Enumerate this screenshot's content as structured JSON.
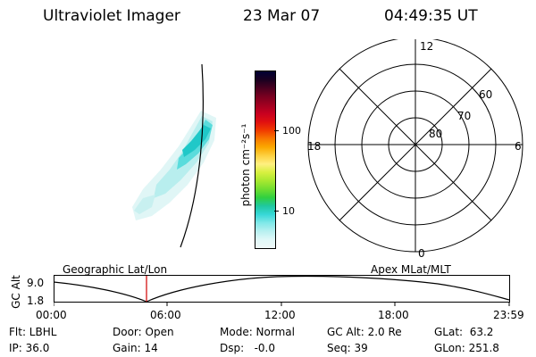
{
  "header": {
    "title": "Ultraviolet Imager",
    "date": "23 Mar 07",
    "time": "04:49:35 UT"
  },
  "colorbar": {
    "unit_label": "photon cm⁻²s⁻¹",
    "ticks": [
      "100",
      "10"
    ],
    "colors": [
      "#000033",
      "#1a0020",
      "#4a0020",
      "#7a0020",
      "#a00020",
      "#c80020",
      "#e01010",
      "#f03a00",
      "#f87800",
      "#fba800",
      "#fdd040",
      "#fff080",
      "#d8f040",
      "#a8e830",
      "#70dd30",
      "#30d040",
      "#20c8a0",
      "#38d8d8",
      "#80e8e8",
      "#b8f0f0",
      "#e0f8f8",
      "#f0f8f8"
    ]
  },
  "polar": {
    "mlt_labels": {
      "top": "12",
      "left": "18",
      "right": "6",
      "bottom": "0"
    },
    "lat_labels": [
      "60",
      "70",
      "80"
    ]
  },
  "orbit": {
    "left_label": "Geographic Lat/Lon",
    "right_label": "Apex MLat/MLT",
    "y_axis_label": "GC Alt",
    "y_ticks": [
      "9.0",
      "1.8"
    ],
    "x_ticks": [
      "00:00",
      "06:00",
      "12:00",
      "18:00",
      "23:59"
    ]
  },
  "status": {
    "flt": "Flt: LBHL",
    "ip": "IP: 36.0",
    "door": "Door: Open",
    "gain": "Gain: 14",
    "mode": "Mode: Normal",
    "dsp": "Dsp:   -0.0",
    "gcalt": "GC Alt: 2.0 Re",
    "seq": "Seq: 39",
    "glat": "GLat:  63.2",
    "glon": "GLon: 251.8"
  }
}
